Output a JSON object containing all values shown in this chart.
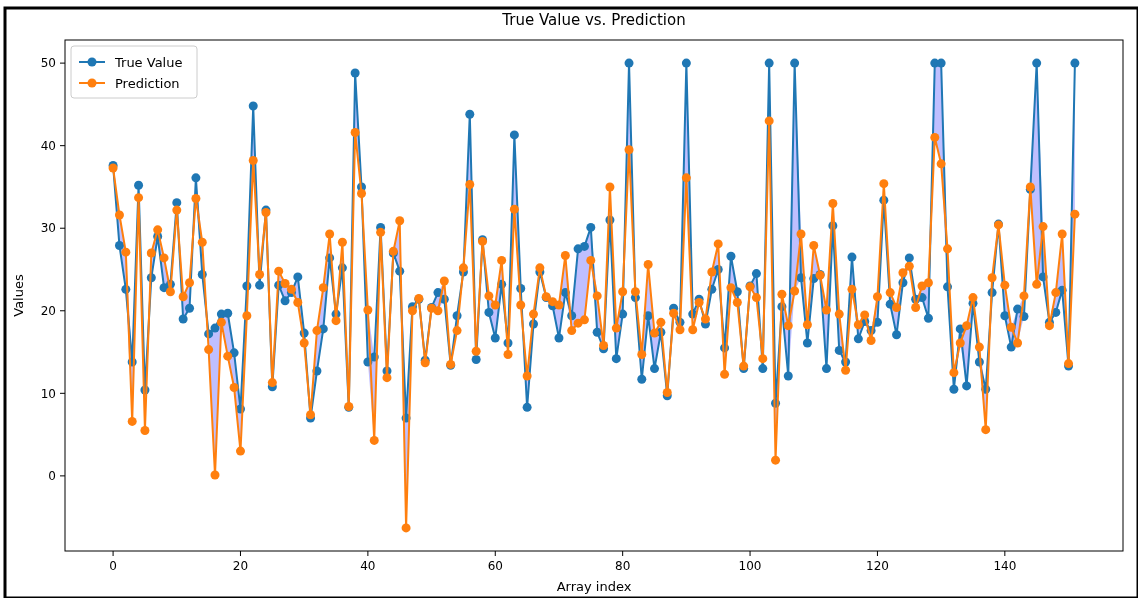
{
  "chart_data": {
    "type": "line",
    "title": "True Value vs. Prediction",
    "xlabel": "Array index",
    "ylabel": "Values",
    "x": [
      0,
      1,
      2,
      3,
      4,
      5,
      6,
      7,
      8,
      9,
      10,
      11,
      12,
      13,
      14,
      15,
      16,
      17,
      18,
      19,
      20,
      21,
      22,
      23,
      24,
      25,
      26,
      27,
      28,
      29,
      30,
      31,
      32,
      33,
      34,
      35,
      36,
      37,
      38,
      39,
      40,
      41,
      42,
      43,
      44,
      45,
      46,
      47,
      48,
      49,
      50,
      51,
      52,
      53,
      54,
      55,
      56,
      57,
      58,
      59,
      60,
      61,
      62,
      63,
      64,
      65,
      66,
      67,
      68,
      69,
      70,
      71,
      72,
      73,
      74,
      75,
      76,
      77,
      78,
      79,
      80,
      81,
      82,
      83,
      84,
      85,
      86,
      87,
      88,
      89,
      90,
      91,
      92,
      93,
      94,
      95,
      96,
      97,
      98,
      99,
      100,
      101,
      102,
      103,
      104,
      105,
      106,
      107,
      108,
      109,
      110,
      111,
      112,
      113,
      114,
      115,
      116,
      117,
      118,
      119,
      120,
      121,
      122,
      123,
      124,
      125,
      126,
      127,
      128,
      129,
      130,
      131,
      132,
      133,
      134,
      135,
      136,
      137,
      138,
      139,
      140,
      141,
      142,
      143,
      144,
      145,
      146,
      147,
      148,
      149,
      150,
      151
    ],
    "series": [
      {
        "name": "True Value",
        "color": "#1f77b4",
        "values": [
          37.6,
          27.9,
          22.6,
          13.8,
          35.2,
          10.4,
          24.0,
          29.0,
          22.8,
          23.2,
          33.1,
          19.0,
          20.3,
          36.1,
          24.4,
          17.2,
          17.9,
          19.6,
          19.7,
          14.9,
          8.1,
          23.0,
          44.8,
          23.1,
          32.2,
          10.8,
          23.1,
          21.2,
          22.2,
          24.1,
          17.3,
          7.0,
          12.7,
          17.8,
          26.4,
          19.6,
          25.2,
          8.3,
          48.8,
          35.0,
          13.8,
          14.4,
          30.1,
          12.7,
          27.0,
          24.8,
          7.0,
          20.5,
          21.4,
          14.0,
          20.4,
          22.2,
          21.4,
          13.4,
          19.4,
          24.7,
          43.8,
          14.1,
          28.6,
          19.8,
          16.7,
          23.2,
          16.1,
          41.3,
          22.7,
          8.3,
          18.4,
          24.7,
          21.6,
          20.6,
          16.7,
          22.2,
          19.4,
          27.5,
          27.8,
          30.1,
          17.4,
          15.4,
          31.0,
          14.2,
          19.6,
          50.0,
          21.6,
          11.7,
          19.4,
          13.0,
          17.4,
          9.7,
          20.3,
          18.6,
          50.0,
          19.6,
          21.4,
          18.4,
          22.6,
          25.0,
          15.5,
          26.6,
          22.3,
          13.0,
          23.0,
          24.5,
          13.0,
          50.0,
          8.8,
          20.5,
          12.1,
          50.0,
          24.0,
          16.1,
          23.9,
          24.4,
          13.0,
          30.3,
          15.2,
          13.8,
          26.5,
          16.6,
          18.7,
          17.6,
          18.6,
          33.4,
          20.8,
          17.1,
          23.4,
          26.4,
          21.4,
          21.6,
          19.1,
          50.0,
          50.0,
          22.9,
          10.5,
          17.8,
          10.9,
          20.9,
          13.8,
          10.5,
          22.2,
          30.5,
          19.4,
          15.6,
          20.2,
          19.3,
          34.7,
          50.0,
          24.1,
          18.6,
          19.8,
          22.5,
          13.3,
          50.0
        ],
        "lower": [
          37.3,
          27.9,
          22.6,
          6.6,
          33.7,
          5.5,
          24.0,
          29.0,
          22.8,
          22.3,
          32.2,
          19.0,
          20.3,
          33.6,
          24.4,
          15.3,
          0.1,
          18.6,
          14.5,
          10.7,
          3.0,
          19.4,
          38.2,
          23.1,
          31.9,
          10.8,
          23.1,
          21.2,
          22.2,
          21.0,
          16.1,
          7.0,
          12.7,
          17.8,
          26.4,
          18.8,
          25.2,
          8.3,
          41.6,
          34.2,
          13.8,
          4.3,
          29.5,
          11.9,
          27.0,
          24.8,
          -6.3,
          20.0,
          21.4,
          13.7,
          20.3,
          20.0,
          21.4,
          13.4,
          17.6,
          24.7,
          35.3,
          14.1,
          28.4,
          19.8,
          16.7,
          23.2,
          14.7,
          32.3,
          20.7,
          8.3,
          18.4,
          24.7,
          21.6,
          20.6,
          16.7,
          22.2,
          17.6,
          18.5,
          18.9,
          26.1,
          17.4,
          15.4,
          31.0,
          14.2,
          19.6,
          39.5,
          21.6,
          11.7,
          19.4,
          13.0,
          17.4,
          9.7,
          19.7,
          17.7,
          36.1,
          17.7,
          21.0,
          18.4,
          22.6,
          25.0,
          12.3,
          22.8,
          21.0,
          13.0,
          22.9,
          21.6,
          13.0,
          43.0,
          1.9,
          20.5,
          12.1,
          22.4,
          24.0,
          16.1,
          23.9,
          24.3,
          13.0,
          30.3,
          15.2,
          12.8,
          22.6,
          16.6,
          18.7,
          16.4,
          18.6,
          33.4,
          20.8,
          17.1,
          23.4,
          25.4,
          20.4,
          21.6,
          19.1,
          41.0,
          37.8,
          22.9,
          10.5,
          16.1,
          10.9,
          20.9,
          13.8,
          5.6,
          22.2,
          30.4,
          19.4,
          15.6,
          16.1,
          19.3,
          34.7,
          23.2,
          24.1,
          18.2,
          19.8,
          22.5,
          13.3,
          31.7
        ],
        "upper": [
          37.6,
          31.6,
          27.1,
          13.8,
          35.2,
          10.4,
          27.0,
          29.8,
          26.4,
          23.2,
          33.1,
          21.7,
          23.4,
          36.1,
          28.3,
          17.2,
          17.9,
          19.6,
          19.7,
          14.9,
          8.1,
          23.0,
          44.8,
          24.4,
          32.2,
          11.3,
          24.8,
          23.3,
          22.6,
          24.1,
          17.3,
          7.4,
          17.6,
          22.8,
          29.3,
          19.6,
          28.3,
          8.4,
          48.8,
          35.0,
          20.1,
          14.4,
          30.1,
          12.7,
          27.2,
          30.9,
          7.0,
          20.5,
          21.5,
          14.0,
          20.4,
          22.2,
          23.6,
          13.5,
          19.4,
          25.2,
          43.8,
          15.1,
          28.6,
          21.8,
          20.7,
          26.1,
          16.1,
          41.3,
          22.7,
          12.1,
          19.6,
          25.2,
          21.7,
          21.1,
          20.7,
          26.7,
          19.4,
          27.5,
          27.8,
          30.1,
          21.8,
          15.8,
          35.0,
          17.9,
          22.3,
          50.0,
          22.3,
          14.7,
          25.6,
          17.3,
          18.6,
          10.1,
          20.3,
          18.6,
          50.0,
          19.6,
          21.4,
          19.0,
          24.7,
          28.1,
          15.5,
          26.6,
          22.3,
          13.3,
          23.0,
          24.5,
          14.2,
          50.0,
          8.8,
          22.0,
          18.2,
          50.0,
          29.3,
          18.3,
          27.9,
          24.4,
          20.1,
          33.0,
          19.6,
          13.8,
          26.5,
          18.3,
          19.5,
          17.6,
          21.7,
          35.4,
          22.2,
          20.4,
          24.6,
          26.4,
          21.4,
          23.0,
          23.4,
          50.0,
          50.0,
          27.5,
          12.5,
          17.8,
          18.2,
          21.6,
          15.6,
          10.5,
          24.0,
          30.5,
          23.1,
          18.0,
          20.2,
          21.8,
          35.0,
          50.0,
          30.2,
          18.6,
          22.2,
          29.3,
          13.6,
          50.0
        ]
      },
      {
        "name": "Prediction",
        "color": "#ff7f0e",
        "values": [
          37.3,
          31.6,
          27.1,
          6.6,
          33.7,
          5.5,
          27.0,
          29.8,
          26.4,
          22.3,
          32.2,
          21.7,
          23.4,
          33.6,
          28.3,
          15.3,
          0.1,
          18.6,
          14.5,
          10.7,
          3.0,
          19.4,
          38.2,
          24.4,
          31.9,
          11.3,
          24.8,
          23.3,
          22.6,
          21.0,
          16.1,
          7.4,
          17.6,
          22.8,
          29.3,
          18.8,
          28.3,
          8.4,
          41.6,
          34.2,
          20.1,
          4.3,
          29.5,
          11.9,
          27.2,
          30.9,
          -6.3,
          20.0,
          21.5,
          13.7,
          20.3,
          20.0,
          23.6,
          13.5,
          17.6,
          25.2,
          35.3,
          15.1,
          28.4,
          21.8,
          20.7,
          26.1,
          14.7,
          32.3,
          20.7,
          12.1,
          19.6,
          25.2,
          21.7,
          21.1,
          20.7,
          26.7,
          17.6,
          18.5,
          18.9,
          26.1,
          21.8,
          15.8,
          35.0,
          17.9,
          22.3,
          39.5,
          22.3,
          14.7,
          25.6,
          17.3,
          18.6,
          10.1,
          19.7,
          17.7,
          36.1,
          17.7,
          21.0,
          19.0,
          24.7,
          28.1,
          12.3,
          22.8,
          21.0,
          13.3,
          22.9,
          21.6,
          14.2,
          43.0,
          1.9,
          22.0,
          18.2,
          22.4,
          29.3,
          18.3,
          27.9,
          24.3,
          20.1,
          33.0,
          19.6,
          12.8,
          22.6,
          18.3,
          19.5,
          16.4,
          21.7,
          35.4,
          22.2,
          20.4,
          24.6,
          25.4,
          20.4,
          23.0,
          23.4,
          41.0,
          37.8,
          27.5,
          12.5,
          16.1,
          18.2,
          21.6,
          15.6,
          5.6,
          24.0,
          30.4,
          23.1,
          18.0,
          16.1,
          21.8,
          35.0,
          23.2,
          30.2,
          18.2,
          22.2,
          29.3,
          13.6,
          31.7
        ]
      }
    ],
    "xlim": [
      -7.55,
      158.55
    ],
    "xticks": [
      0,
      20,
      40,
      60,
      80,
      100,
      120,
      140
    ],
    "ylim": [
      -9.1,
      52.8
    ],
    "yticks": [
      0,
      10,
      20,
      30,
      40,
      50
    ],
    "marker": "circle",
    "line_style": "solid",
    "grid": false,
    "legend": "top left"
  }
}
